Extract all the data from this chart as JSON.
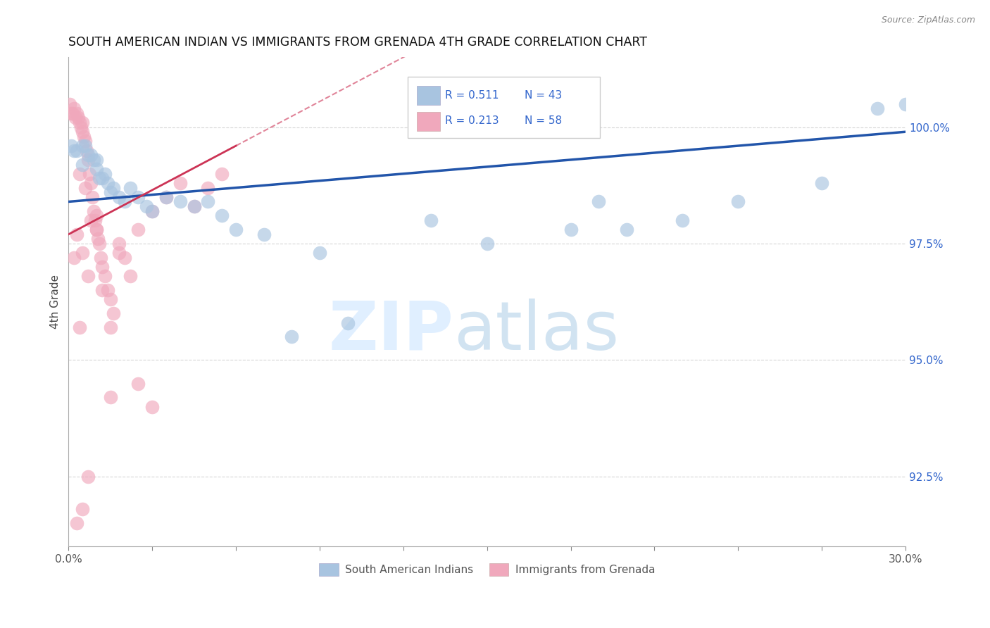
{
  "title": "SOUTH AMERICAN INDIAN VS IMMIGRANTS FROM GRENADA 4TH GRADE CORRELATION CHART",
  "source": "Source: ZipAtlas.com",
  "ylabel_label": "4th Grade",
  "xlim": [
    0.0,
    30.0
  ],
  "ylim": [
    91.0,
    101.5
  ],
  "legend_labels": [
    "South American Indians",
    "Immigrants from Grenada"
  ],
  "legend_r_blue": "0.511",
  "legend_n_blue": "43",
  "legend_r_pink": "0.213",
  "legend_n_pink": "58",
  "blue_color": "#a8c4e0",
  "pink_color": "#f0a8bc",
  "blue_line_color": "#2255aa",
  "pink_line_color": "#cc3355",
  "blue_scatter_x": [
    0.1,
    0.2,
    0.3,
    0.5,
    0.5,
    0.6,
    0.7,
    0.8,
    0.9,
    1.0,
    1.0,
    1.1,
    1.2,
    1.3,
    1.4,
    1.5,
    1.6,
    1.8,
    2.0,
    2.2,
    2.5,
    2.8,
    3.0,
    3.5,
    4.0,
    4.5,
    5.0,
    5.5,
    6.0,
    7.0,
    8.0,
    9.0,
    10.0,
    13.0,
    15.0,
    18.0,
    19.0,
    20.0,
    22.0,
    24.0,
    27.0,
    29.0,
    30.0
  ],
  "blue_scatter_y": [
    99.6,
    99.5,
    99.5,
    99.6,
    99.2,
    99.6,
    99.4,
    99.4,
    99.3,
    99.1,
    99.3,
    98.9,
    98.9,
    99.0,
    98.8,
    98.6,
    98.7,
    98.5,
    98.4,
    98.7,
    98.5,
    98.3,
    98.2,
    98.5,
    98.4,
    98.3,
    98.4,
    98.1,
    97.8,
    97.7,
    95.5,
    97.3,
    95.8,
    98.0,
    97.5,
    97.8,
    98.4,
    97.8,
    98.0,
    98.4,
    98.8,
    100.4,
    100.5
  ],
  "pink_scatter_x": [
    0.05,
    0.1,
    0.15,
    0.2,
    0.25,
    0.3,
    0.35,
    0.4,
    0.45,
    0.5,
    0.5,
    0.55,
    0.6,
    0.65,
    0.7,
    0.75,
    0.8,
    0.85,
    0.9,
    0.95,
    1.0,
    1.0,
    1.05,
    1.1,
    1.15,
    1.2,
    1.3,
    1.4,
    1.5,
    1.6,
    1.8,
    2.0,
    2.2,
    2.5,
    3.0,
    3.5,
    4.0,
    4.5,
    5.0,
    5.5,
    0.3,
    0.5,
    0.7,
    1.0,
    1.2,
    0.4,
    0.6,
    0.8,
    1.5,
    1.8,
    0.2,
    0.4,
    2.5,
    3.0,
    0.3,
    0.5,
    0.7,
    1.5
  ],
  "pink_scatter_y": [
    100.5,
    100.3,
    100.3,
    100.4,
    100.2,
    100.3,
    100.2,
    100.1,
    100.0,
    99.9,
    100.1,
    99.8,
    99.7,
    99.5,
    99.3,
    99.0,
    98.8,
    98.5,
    98.2,
    98.0,
    97.8,
    98.1,
    97.6,
    97.5,
    97.2,
    97.0,
    96.8,
    96.5,
    96.3,
    96.0,
    97.5,
    97.2,
    96.8,
    97.8,
    98.2,
    98.5,
    98.8,
    98.3,
    98.7,
    99.0,
    97.7,
    97.3,
    96.8,
    97.8,
    96.5,
    99.0,
    98.7,
    98.0,
    95.7,
    97.3,
    97.2,
    95.7,
    94.5,
    94.0,
    91.5,
    91.8,
    92.5,
    94.2
  ],
  "blue_trend_x0": 0.0,
  "blue_trend_y0": 98.4,
  "blue_trend_x1": 30.0,
  "blue_trend_y1": 99.9,
  "pink_trend_x0": 0.0,
  "pink_trend_y0": 97.7,
  "pink_trend_x1": 6.0,
  "pink_trend_y1": 99.6
}
